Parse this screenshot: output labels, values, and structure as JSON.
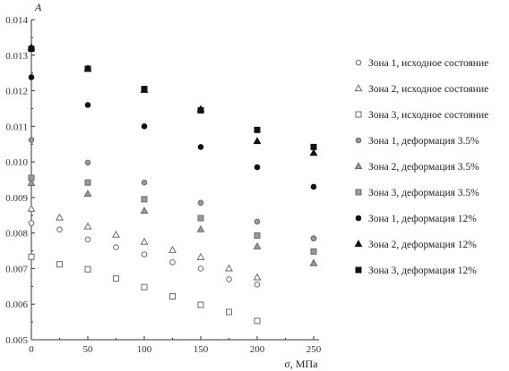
{
  "chart_data": {
    "type": "scatter",
    "title": "",
    "xlabel": "σ, МПа",
    "ylabel": "A",
    "xlim": [
      0,
      250
    ],
    "ylim": [
      0.005,
      0.014
    ],
    "x_ticks": [
      0,
      50,
      100,
      150,
      200,
      250
    ],
    "y_ticks": [
      0.005,
      0.006,
      0.007,
      0.008,
      0.009,
      0.01,
      0.011,
      0.012,
      0.013,
      0.014
    ],
    "x_tick_labels": [
      "0",
      "50",
      "100",
      "150",
      "200",
      "250"
    ],
    "y_tick_labels": [
      "0.005",
      "0.006",
      "0.007",
      "0.008",
      "0.009",
      "0.010",
      "0.011",
      "0.012",
      "0.013",
      "0.014"
    ],
    "grid": false,
    "legend_position": "right",
    "series": [
      {
        "name": "Зона 1, исходное состояние",
        "marker": "circle",
        "fill": "open",
        "x": [
          0,
          25,
          50,
          75,
          100,
          125,
          150,
          175,
          200,
          250
        ],
        "y": [
          0.00828,
          0.0081,
          0.00782,
          0.0076,
          0.0074,
          0.00718,
          0.007,
          0.0067,
          0.00655,
          0.00785
        ]
      },
      {
        "name": "Зона 2, исходное состояние",
        "marker": "triangle",
        "fill": "open",
        "x": [
          0,
          25,
          50,
          75,
          100,
          125,
          150,
          175,
          200,
          250
        ],
        "y": [
          0.00868,
          0.00843,
          0.00818,
          0.00795,
          0.00775,
          0.00752,
          0.00732,
          0.007,
          0.00675,
          0.00715
        ]
      },
      {
        "name": "Зона 3, исходное состояние",
        "marker": "square",
        "fill": "open",
        "x": [
          0,
          25,
          50,
          75,
          100,
          125,
          150,
          175,
          200
        ],
        "y": [
          0.00733,
          0.00712,
          0.00698,
          0.00672,
          0.00648,
          0.00622,
          0.00598,
          0.00578,
          0.00553
        ]
      },
      {
        "name": "Зона 1, деформация 3.5%",
        "marker": "circle",
        "fill": "gray",
        "x": [
          0,
          50,
          100,
          150,
          200,
          250
        ],
        "y": [
          0.01062,
          0.00998,
          0.00942,
          0.00885,
          0.00832,
          0.00785
        ]
      },
      {
        "name": "Зона 2, деформация 3.5%",
        "marker": "triangle",
        "fill": "gray",
        "x": [
          0,
          50,
          100,
          150,
          200,
          250
        ],
        "y": [
          0.0094,
          0.0091,
          0.00862,
          0.0081,
          0.00762,
          0.00715
        ]
      },
      {
        "name": "Зона 3, деформация 3.5%",
        "marker": "square",
        "fill": "gray",
        "x": [
          0,
          50,
          100,
          150,
          200,
          250
        ],
        "y": [
          0.00955,
          0.00942,
          0.00895,
          0.00842,
          0.00793,
          0.00748
        ]
      },
      {
        "name": "Зона 1, деформация 12%",
        "marker": "circle",
        "fill": "black",
        "x": [
          0,
          50,
          100,
          150,
          200,
          250
        ],
        "y": [
          0.01238,
          0.0116,
          0.011,
          0.01042,
          0.00985,
          0.0093
        ]
      },
      {
        "name": "Зона 2, деформация 12%",
        "marker": "triangle",
        "fill": "black",
        "x": [
          0,
          50,
          100,
          150,
          200,
          250
        ],
        "y": [
          0.01322,
          0.01262,
          0.01202,
          0.01148,
          0.01058,
          0.01025
        ]
      },
      {
        "name": "Зона 3, деформация 12%",
        "marker": "square",
        "fill": "black",
        "x": [
          0,
          50,
          100,
          150,
          200,
          250
        ],
        "y": [
          0.01318,
          0.01262,
          0.01205,
          0.01145,
          0.0109,
          0.01042
        ]
      }
    ],
    "colors": {
      "open": "#ffffff",
      "gray": "#9a9a9a",
      "black": "#111111",
      "stroke_open": "#6a6a6a",
      "stroke_gray": "#6a6a6a",
      "axis": "#333333"
    }
  }
}
